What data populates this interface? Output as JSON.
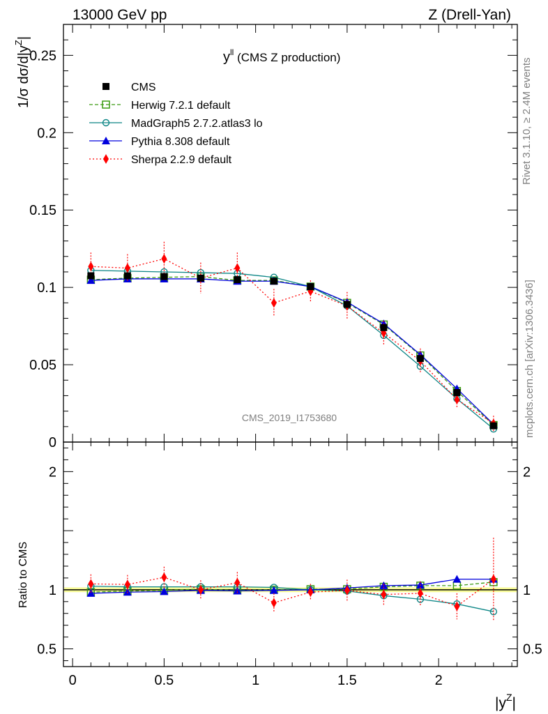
{
  "header": {
    "left": "13000 GeV pp",
    "right": "Z (Drell-Yan)"
  },
  "side": {
    "rivet": "Rivet 3.1.10, ≥ 2.4M events",
    "source": "mcplots.cern.ch [arXiv:1306.3436]"
  },
  "chart_data": {
    "type": "line",
    "title_main": "y",
    "title_sup": "ll",
    "title_rest": " (CMS Z production)",
    "analysis": "CMS_2019_I1753680",
    "ylabel_main": "1/σ dσ/d|y",
    "ylabel_sup": "Z",
    "ylabel_end": "|",
    "ratio_ylabel": "Ratio to CMS",
    "xlabel_main": "|y",
    "xlabel_sup": "Z",
    "xlabel_end": "|",
    "xlim": [
      -0.05,
      2.43
    ],
    "ylim": [
      0,
      0.27
    ],
    "ratio_ylim": [
      0.35,
      2.25
    ],
    "x_ticks": [
      0,
      0.5,
      1,
      1.5,
      2
    ],
    "x_tick_labels": [
      "0",
      "0.5",
      "1",
      "1.5",
      "2"
    ],
    "y_ticks": [
      0,
      0.05,
      0.1,
      0.15,
      0.2,
      0.25
    ],
    "y_tick_labels": [
      "0",
      "0.05",
      "0.1",
      "0.15",
      "0.2",
      "0.25"
    ],
    "ratio_ticks": [
      0.5,
      1,
      2
    ],
    "ratio_tick_labels": [
      "0.5",
      "1",
      "2"
    ],
    "x": [
      0.1,
      0.3,
      0.5,
      0.7,
      0.9,
      1.1,
      1.3,
      1.5,
      1.7,
      1.9,
      2.1,
      2.3
    ],
    "series": [
      {
        "name": "CMS",
        "color": "#000000",
        "style": "data",
        "values": [
          0.1075,
          0.1075,
          0.107,
          0.106,
          0.105,
          0.104,
          0.1005,
          0.089,
          0.074,
          0.054,
          0.032,
          0.0105
        ]
      },
      {
        "name": "Herwig 7.2.1 default",
        "color": "#3a9b10",
        "style": "herwig",
        "values": [
          0.105,
          0.106,
          0.1065,
          0.107,
          0.1045,
          0.1045,
          0.1005,
          0.09,
          0.076,
          0.056,
          0.033,
          0.011
        ]
      },
      {
        "name": "MadGraph5 2.7.2.atlas3 lo",
        "color": "#0b8585",
        "style": "madgraph",
        "values": [
          0.111,
          0.1105,
          0.11,
          0.1095,
          0.109,
          0.1065,
          0.1005,
          0.088,
          0.069,
          0.049,
          0.028,
          0.0085
        ]
      },
      {
        "name": "Pythia 8.308 default",
        "color": "#0000dd",
        "style": "pythia",
        "values": [
          0.1045,
          0.1055,
          0.1055,
          0.1055,
          0.104,
          0.104,
          0.1005,
          0.0905,
          0.0765,
          0.0565,
          0.0345,
          0.0115
        ]
      },
      {
        "name": "Sherpa 2.2.9 default",
        "color": "#ff0000",
        "style": "sherpa",
        "values": [
          0.1135,
          0.1125,
          0.1185,
          0.106,
          0.1125,
          0.09,
          0.0975,
          0.088,
          0.0705,
          0.0525,
          0.0275,
          0.012
        ],
        "errors": [
          0.009,
          0.009,
          0.011,
          0.01,
          0.01,
          0.009,
          0.007,
          0.009,
          0.008,
          0.008,
          0.005,
          0.005
        ]
      }
    ],
    "ratio_series": [
      {
        "name": "Herwig 7.2.1 default",
        "values": [
          0.98,
          0.99,
          0.995,
          1.005,
          0.995,
          1.0,
          1.005,
          1.005,
          1.025,
          1.035,
          1.035,
          1.065
        ]
      },
      {
        "name": "MadGraph5 2.7.2.atlas3 lo",
        "values": [
          1.03,
          1.025,
          1.025,
          1.025,
          1.025,
          1.02,
          1.0,
          0.99,
          0.95,
          0.92,
          0.88,
          0.815
        ]
      },
      {
        "name": "Pythia 8.308 default",
        "values": [
          0.97,
          0.98,
          0.985,
          0.995,
          0.99,
          0.995,
          1.0,
          1.015,
          1.035,
          1.04,
          1.09,
          1.09
        ]
      },
      {
        "name": "Sherpa 2.2.9 default",
        "values": [
          1.05,
          1.045,
          1.105,
          1.0,
          1.06,
          0.89,
          0.98,
          0.995,
          0.96,
          0.97,
          0.86,
          1.09
        ],
        "errors": [
          0.08,
          0.08,
          0.09,
          0.08,
          0.09,
          0.08,
          0.07,
          0.09,
          0.09,
          0.1,
          0.11,
          0.35
        ]
      }
    ]
  }
}
